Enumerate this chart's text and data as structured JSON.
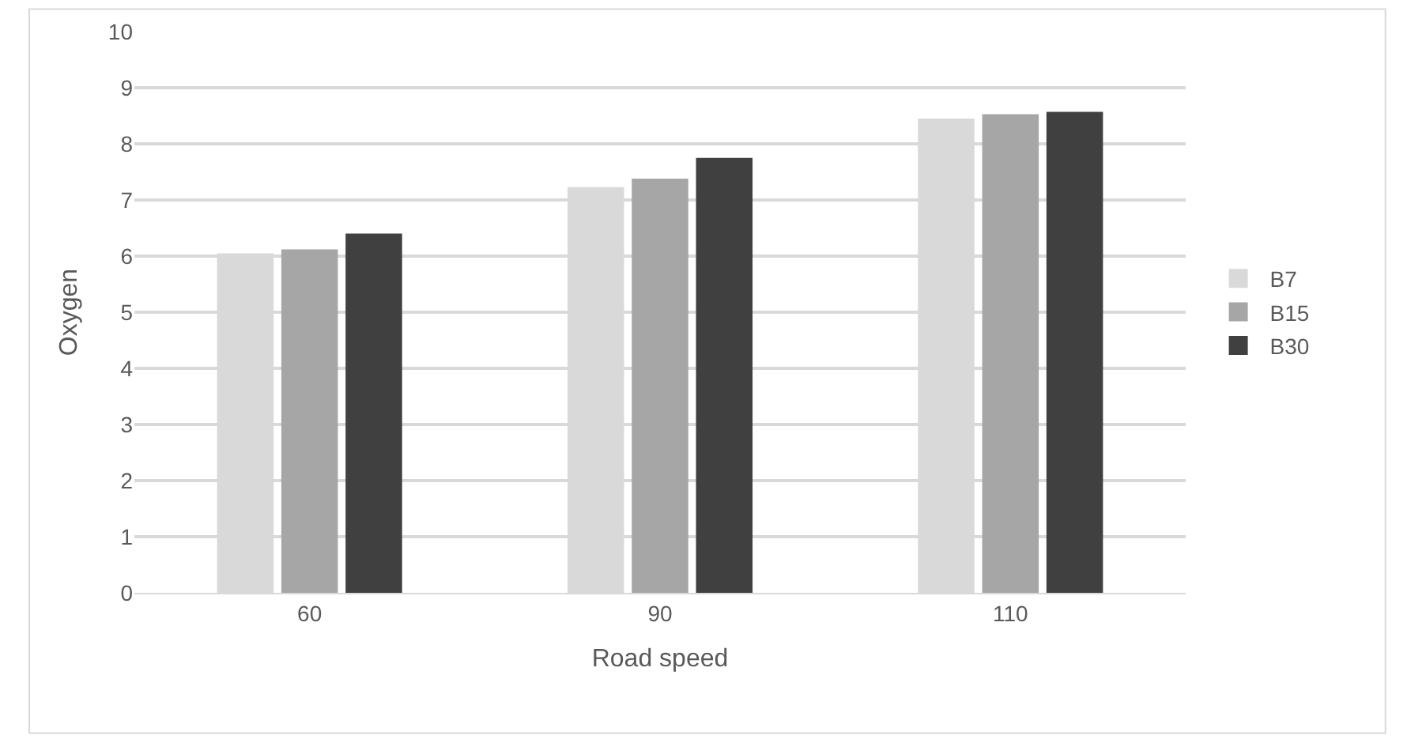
{
  "chart_data": {
    "type": "bar",
    "xlabel": "Road speed",
    "ylabel": "Oxygen",
    "categories": [
      "60",
      "90",
      "110"
    ],
    "series": [
      {
        "name": "B7",
        "color": "#d9d9d9",
        "values": [
          6.05,
          7.23,
          8.45
        ]
      },
      {
        "name": "B15",
        "color": "#a6a6a6",
        "values": [
          6.12,
          7.38,
          8.53
        ]
      },
      {
        "name": "B30",
        "color": "#404040",
        "values": [
          6.4,
          7.75,
          8.57
        ]
      }
    ],
    "ylim": [
      0,
      10
    ],
    "yticks": [
      0,
      1,
      2,
      3,
      4,
      5,
      6,
      7,
      8,
      9,
      10
    ],
    "grid": "y",
    "legend": "right"
  }
}
